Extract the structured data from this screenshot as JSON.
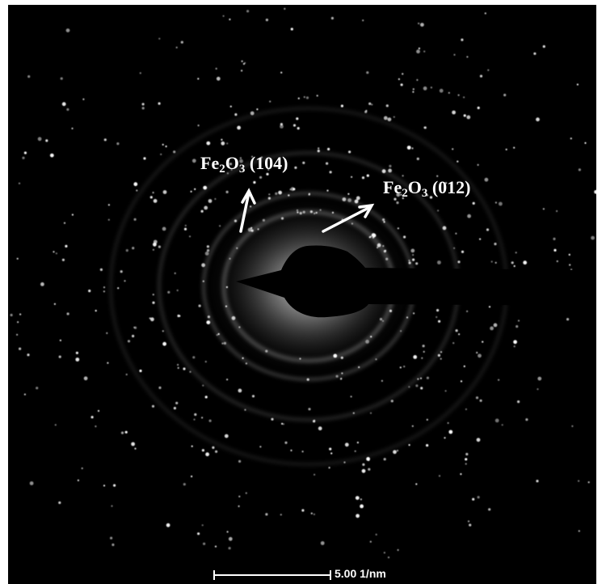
{
  "image": {
    "subject": "selected-area-electron-diffraction-pattern",
    "background_color": "#000000",
    "spot_color": "#ffffff"
  },
  "annotations": [
    {
      "id": "fe2o3-104",
      "prefix": "Fe",
      "sub1": "2",
      "mid": "O",
      "sub2": "3",
      "suffix": " (104)"
    },
    {
      "id": "fe2o3-012",
      "prefix": "Fe",
      "sub1": "2",
      "mid": "O",
      "sub2": "3",
      "suffix": " (012)"
    }
  ],
  "scale_bar": {
    "text": "5.00 1/nm"
  }
}
